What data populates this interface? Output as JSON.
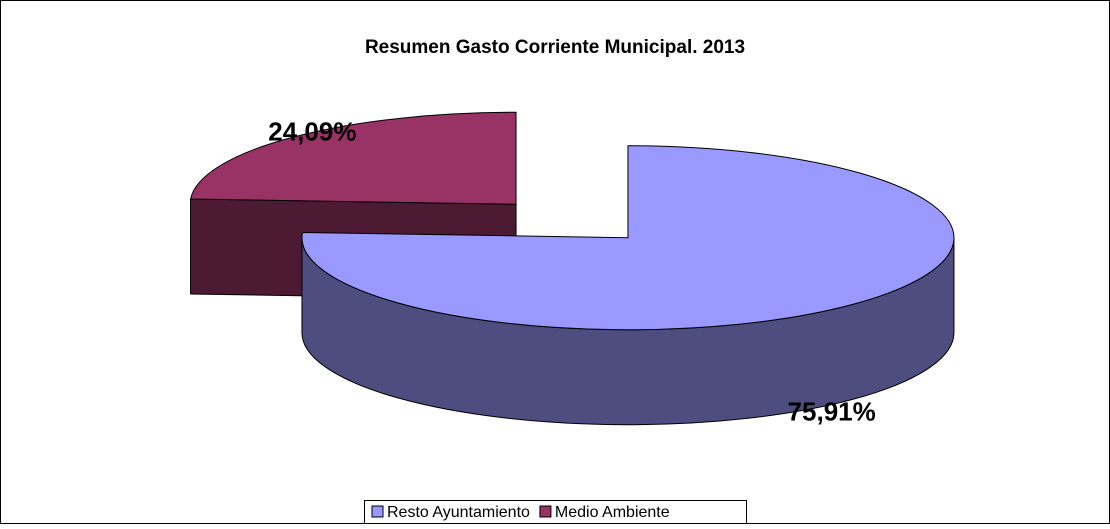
{
  "chart_data": {
    "type": "pie",
    "title": "Resumen Gasto Corriente Municipal. 2013",
    "categories": [
      "Resto Ayuntamiento",
      "Medio Ambiente"
    ],
    "values": [
      75.91,
      24.09
    ],
    "value_labels": [
      "75,91%",
      "24,09%"
    ],
    "colors": [
      "#9999ff",
      "#993366"
    ],
    "legend": "bottom"
  }
}
